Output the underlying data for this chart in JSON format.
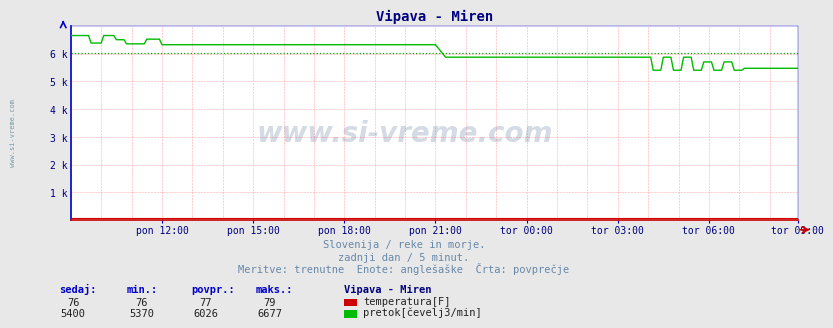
{
  "title": "Vipava - Miren",
  "fig_bg": "#e8e8e8",
  "plot_bg": "#ffffff",
  "title_color": "#000080",
  "title_fontsize": 10,
  "axis_color": "#0000cc",
  "bottom_axis_color": "#cc0000",
  "grid_h_color": "#ffaaaa",
  "grid_v_color": "#ffaaaa",
  "grid_style": "--",
  "x_tick_labels": [
    "pon 12:00",
    "pon 15:00",
    "pon 18:00",
    "pon 21:00",
    "tor 00:00",
    "tor 03:00",
    "tor 06:00",
    "tor 09:00"
  ],
  "x_tick_pos": [
    36,
    72,
    108,
    144,
    180,
    216,
    252,
    287
  ],
  "y_tick_labels": [
    "1 k",
    "2 k",
    "3 k",
    "4 k",
    "5 k",
    "6 k"
  ],
  "y_tick_values": [
    1000,
    2000,
    3000,
    4000,
    5000,
    6000
  ],
  "ylim": [
    0,
    7000
  ],
  "flow_color": "#00bb00",
  "temp_color": "#cc0000",
  "avg_line_color": "#00aa00",
  "avg_line_value": 6026,
  "subtitle1": "Slovenija / reke in morje.",
  "subtitle2": "zadnji dan / 5 minut.",
  "subtitle3": "Meritve: trenutne  Enote: anglešaške  Črta: povprečje",
  "subtitle_color": "#6688aa",
  "legend_title": "Vipava - Miren",
  "legend_label_temp": "temperatura[F]",
  "legend_label_flow": "pretok[čevelj3/min]",
  "legend_color_temp": "#cc0000",
  "legend_color_flow": "#00bb00",
  "stats_headers": [
    "sedaj:",
    "min.:",
    "povpr.:",
    "maks.:"
  ],
  "stats_temp": [
    76,
    76,
    77,
    79
  ],
  "stats_flow": [
    5400,
    5370,
    6026,
    6677
  ],
  "watermark": "www.si-vreme.com",
  "left_label": "www.si-vreme.com",
  "n_points": 288
}
